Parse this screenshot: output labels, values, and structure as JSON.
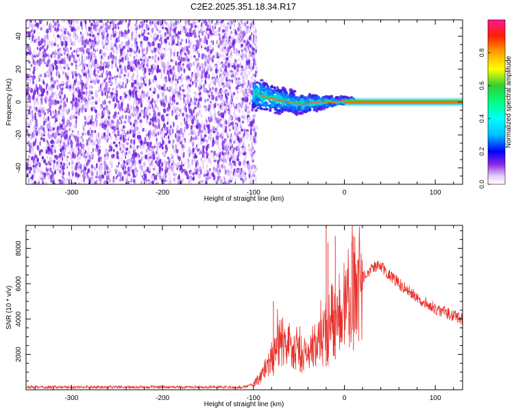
{
  "title": "C2E2.2025.351.18.34.R17",
  "chart_data": [
    {
      "type": "heatmap",
      "xlabel": "Height of straight line (km)",
      "ylabel": "Frequency (Hz)",
      "xlim": [
        -350,
        130
      ],
      "ylim": [
        -50,
        50
      ],
      "xticks": [
        -300,
        -200,
        -100,
        0,
        100
      ],
      "yticks": [
        -40,
        -20,
        0,
        20,
        40
      ],
      "colorbar": {
        "label": "Normalized spectral amplitude",
        "range": [
          0.0,
          1.0
        ],
        "ticks": [
          0.0,
          0.2,
          0.4,
          0.6,
          0.8
        ],
        "tick_labels": [
          "0.0",
          "0.2",
          "0.4",
          "0.6",
          "0.8"
        ]
      },
      "regions": [
        {
          "name": "noise",
          "x": [
            -350,
            -100
          ],
          "y": [
            -50,
            50
          ],
          "amplitude": [
            0.0,
            0.2
          ]
        },
        {
          "name": "onset",
          "x": [
            -100,
            0
          ],
          "y": [
            -12,
            12
          ],
          "amplitude": [
            0.2,
            0.6
          ]
        },
        {
          "name": "signal",
          "x": [
            0,
            130
          ],
          "y": [
            -1.5,
            1.5
          ],
          "amplitude": [
            0.9,
            1.0
          ]
        }
      ],
      "signal_frequency": [
        {
          "x": -100,
          "y": 6
        },
        {
          "x": -90,
          "y": 4
        },
        {
          "x": -80,
          "y": 2
        },
        {
          "x": -70,
          "y": 1
        },
        {
          "x": -60,
          "y": 0
        },
        {
          "x": -50,
          "y": -1
        },
        {
          "x": -40,
          "y": -1
        },
        {
          "x": -30,
          "y": 0
        },
        {
          "x": -20,
          "y": 0
        },
        {
          "x": -10,
          "y": 0
        },
        {
          "x": 0,
          "y": 1
        },
        {
          "x": 130,
          "y": 0
        }
      ]
    },
    {
      "type": "line",
      "xlabel": "Height of straight line (km)",
      "ylabel": "SNR (10 * v/v)",
      "xlim": [
        -350,
        130
      ],
      "ylim": [
        0,
        9300
      ],
      "xticks": [
        -300,
        -200,
        -100,
        0,
        100
      ],
      "yticks": [
        2000,
        4000,
        6000,
        8000
      ],
      "series": [
        {
          "name": "SNR",
          "color": "#e8302a",
          "envelope": [
            {
              "x": -350,
              "y": 150
            },
            {
              "x": -110,
              "y": 150
            },
            {
              "x": -100,
              "y": 300
            },
            {
              "x": -90,
              "y": 900
            },
            {
              "x": -80,
              "y": 1800
            },
            {
              "x": -70,
              "y": 2800
            },
            {
              "x": -60,
              "y": 2600
            },
            {
              "x": -50,
              "y": 2200
            },
            {
              "x": -40,
              "y": 1700
            },
            {
              "x": -30,
              "y": 2300
            },
            {
              "x": -20,
              "y": 3300
            },
            {
              "x": -10,
              "y": 4300
            },
            {
              "x": 0,
              "y": 4800
            },
            {
              "x": 10,
              "y": 5600
            },
            {
              "x": 20,
              "y": 6300
            },
            {
              "x": 30,
              "y": 6900
            },
            {
              "x": 40,
              "y": 7000
            },
            {
              "x": 50,
              "y": 6500
            },
            {
              "x": 60,
              "y": 6000
            },
            {
              "x": 70,
              "y": 5600
            },
            {
              "x": 80,
              "y": 5200
            },
            {
              "x": 90,
              "y": 4900
            },
            {
              "x": 100,
              "y": 4600
            },
            {
              "x": 110,
              "y": 4400
            },
            {
              "x": 120,
              "y": 4200
            },
            {
              "x": 130,
              "y": 4000
            }
          ],
          "spikes": [
            {
              "x": -78,
              "y": 5000
            },
            {
              "x": -20,
              "y": 9300
            },
            {
              "x": -18,
              "y": 8300
            },
            {
              "x": -10,
              "y": 8700
            },
            {
              "x": 10,
              "y": 8700
            }
          ]
        }
      ]
    }
  ]
}
